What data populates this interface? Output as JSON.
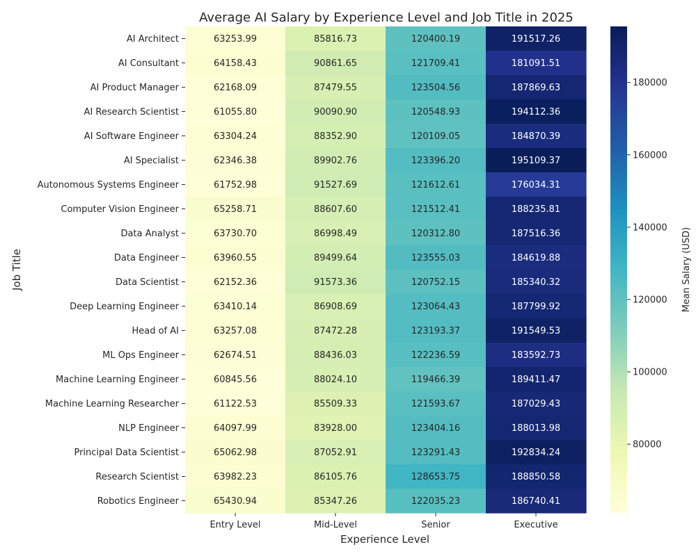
{
  "chart_data": {
    "type": "heatmap",
    "title": "Average AI Salary by Experience Level and Job Title in 2025",
    "xlabel": "Experience Level",
    "ylabel": "Job Title",
    "colorbar_label": "Mean Salary (USD)",
    "colormap": "YlGnBu",
    "color_range": [
      61000,
      195500
    ],
    "colorbar_ticks": [
      80000,
      100000,
      120000,
      140000,
      160000,
      180000
    ],
    "colorbar_tick_labels": [
      "80000",
      "100000",
      "120000",
      "140000",
      "160000",
      "180000"
    ],
    "x_categories": [
      "Entry Level",
      "Mid-Level",
      "Senior",
      "Executive"
    ],
    "y_categories": [
      "AI Architect",
      "AI Consultant",
      "AI Product Manager",
      "AI Research Scientist",
      "AI Software Engineer",
      "AI Specialist",
      "Autonomous Systems Engineer",
      "Computer Vision Engineer",
      "Data Analyst",
      "Data Engineer",
      "Data Scientist",
      "Deep Learning Engineer",
      "Head of AI",
      "ML Ops Engineer",
      "Machine Learning Engineer",
      "Machine Learning Researcher",
      "NLP Engineer",
      "Principal Data Scientist",
      "Research Scientist",
      "Robotics Engineer"
    ],
    "values": [
      [
        63253.99,
        85816.73,
        120400.19,
        191517.26
      ],
      [
        64158.43,
        90861.65,
        121709.41,
        181091.51
      ],
      [
        62168.09,
        87479.55,
        123504.56,
        187869.63
      ],
      [
        61055.8,
        90090.9,
        120548.93,
        194112.36
      ],
      [
        63304.24,
        88352.9,
        120109.05,
        184870.39
      ],
      [
        62346.38,
        89902.76,
        123396.2,
        195109.37
      ],
      [
        61752.98,
        91527.69,
        121612.61,
        176034.31
      ],
      [
        65258.71,
        88607.6,
        121512.41,
        188235.81
      ],
      [
        63730.7,
        86998.49,
        120312.8,
        187516.36
      ],
      [
        63960.55,
        89499.64,
        123555.03,
        184619.88
      ],
      [
        62152.36,
        91573.36,
        120752.15,
        185340.32
      ],
      [
        63410.14,
        86908.69,
        123064.43,
        187799.92
      ],
      [
        63257.08,
        87472.28,
        123193.37,
        191549.53
      ],
      [
        62674.51,
        88436.03,
        122236.59,
        183592.73
      ],
      [
        60845.56,
        88024.1,
        119466.39,
        189411.47
      ],
      [
        61122.53,
        85509.33,
        121593.67,
        187029.43
      ],
      [
        64097.99,
        83928.0,
        123404.16,
        188013.98
      ],
      [
        65062.98,
        87052.91,
        123291.43,
        192834.24
      ],
      [
        63982.23,
        86105.76,
        128653.75,
        188850.58
      ],
      [
        65430.94,
        85347.26,
        122035.23,
        186740.41
      ]
    ]
  }
}
